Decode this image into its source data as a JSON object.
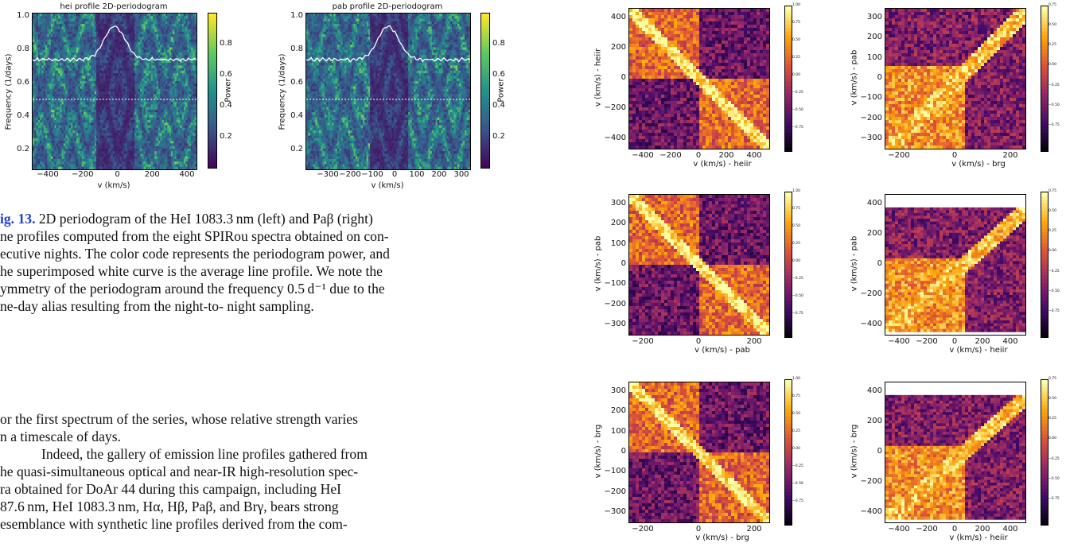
{
  "periodograms": [
    {
      "title": "hei profile 2D-periodogram",
      "xlabel": "v (km/s)",
      "ylabel": "Frequency (1/days)",
      "cbar_label": "Power",
      "xticks": [
        "−400",
        "−200",
        "0",
        "200",
        "400"
      ],
      "yticks": [
        "0.2",
        "0.4",
        "0.6",
        "0.8",
        "1.0"
      ],
      "cticks": [
        "0.2",
        "0.4",
        "0.6",
        "0.8"
      ]
    },
    {
      "title": "pab profile 2D-periodogram",
      "xlabel": "v (km/s)",
      "ylabel": "Frequency (1/days)",
      "cbar_label": "Power",
      "xticks": [
        "−300",
        "−200",
        "−100",
        "0",
        "100",
        "200",
        "300"
      ],
      "yticks": [
        "0.2",
        "0.4",
        "0.6",
        "0.8",
        "1.0"
      ],
      "cticks": [
        "0.2",
        "0.4",
        "0.6",
        "0.8"
      ]
    }
  ],
  "caption": {
    "fig_label": "ig. 13.",
    "lines": [
      " 2D periodogram of the HeI 1083.3 nm (left) and Paβ (right)",
      "ne profiles computed from the eight SPIRou spectra obtained on con-",
      "ecutive nights. The color code represents the periodogram power, and",
      "he superimposed white curve is the average line profile. We note the",
      "ymmetry of the periodogram around the frequency 0.5 d⁻¹ due to the",
      "ne-day alias resulting from the night-to- night sampling."
    ]
  },
  "body": {
    "lines": [
      "or the first spectrum of the series, whose relative strength varies",
      "n a timescale of days.",
      "Indeed, the gallery of emission line profiles gathered from",
      "he quasi-simultaneous optical and near-IR high-resolution spec-",
      "ra obtained for DoAr 44 during this campaign, including HeI",
      "87.6 nm, HeI 1083.3 nm, Hα, Hβ, Paβ, and Brγ, bears strong",
      "esemblance with synthetic line profiles derived from the com-"
    ]
  },
  "correlation_matrices": [
    {
      "xlabel": "v (km/s) - heiir",
      "ylabel": "v (km/s) - heiir",
      "xticks": [
        "−400",
        "−200",
        "0",
        "200",
        "400"
      ],
      "yticks": [
        "400",
        "200",
        "0",
        "−200",
        "−400"
      ],
      "cticks": [
        "1.00",
        "0.75",
        "0.50",
        "0.25",
        "0.00",
        "−0.25",
        "−0.50",
        "−0.75"
      ]
    },
    {
      "xlabel": "v (km/s) - brg",
      "ylabel": "v (km/s) - pab",
      "xticks": [
        "−200",
        "0",
        "200"
      ],
      "yticks": [
        "300",
        "200",
        "100",
        "0",
        "−100",
        "−200",
        "−300"
      ],
      "cticks": [
        "0.75",
        "0.50",
        "0.25",
        "0.00",
        "−0.25",
        "−0.50",
        "−0.75"
      ]
    },
    {
      "xlabel": "v (km/s) - pab",
      "ylabel": "v (km/s) - pab",
      "xticks": [
        "−200",
        "0",
        "200"
      ],
      "yticks": [
        "300",
        "200",
        "100",
        "0",
        "−100",
        "−200",
        "−300"
      ],
      "cticks": [
        "1.00",
        "0.75",
        "0.50",
        "0.25",
        "0.00",
        "−0.25",
        "−0.50",
        "−0.75"
      ]
    },
    {
      "xlabel": "v (km/s) - heiir",
      "ylabel": "v (km/s) - pab",
      "xticks": [
        "−400",
        "−200",
        "0",
        "200",
        "400"
      ],
      "yticks": [
        "400",
        "200",
        "0",
        "−200",
        "−400"
      ],
      "cticks": [
        "0.75",
        "0.50",
        "0.25",
        "0.00",
        "−0.25",
        "−0.50",
        "−0.75"
      ]
    },
    {
      "xlabel": "v (km/s) - brg",
      "ylabel": "v (km/s) - brg",
      "xticks": [
        "−200",
        "0",
        "200"
      ],
      "yticks": [
        "300",
        "200",
        "100",
        "0",
        "−100",
        "−200",
        "−300"
      ],
      "cticks": [
        "1.00",
        "0.75",
        "0.50",
        "0.25",
        "0.00",
        "−0.25",
        "−0.50",
        "−0.75"
      ]
    },
    {
      "xlabel": "v (km/s) - heiir",
      "ylabel": "v (km/s) - brg",
      "xticks": [
        "−400",
        "−200",
        "0",
        "200",
        "400"
      ],
      "yticks": [
        "400",
        "200",
        "0",
        "−200",
        "−400"
      ],
      "cticks": [
        "0.75",
        "0.50",
        "0.25",
        "0.00",
        "−0.25",
        "−0.50",
        "−0.75"
      ]
    }
  ],
  "colors": {
    "viridis": [
      "#440154",
      "#3b528b",
      "#21918c",
      "#5ec962",
      "#fde725"
    ],
    "inferno": [
      "#000004",
      "#420a68",
      "#932667",
      "#dd513a",
      "#fca50a",
      "#fcffa4"
    ]
  }
}
